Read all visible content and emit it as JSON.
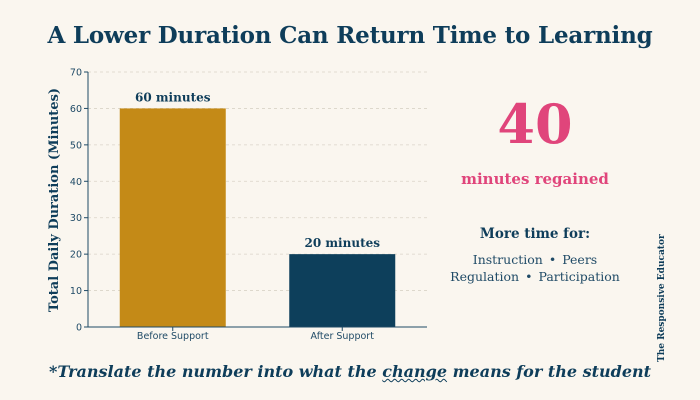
{
  "title": "A Lower Duration Can Return Time to Learning",
  "chart_data": {
    "type": "bar",
    "categories": [
      "Before Support",
      "After Support"
    ],
    "values": [
      60,
      20
    ],
    "data_labels": [
      "60 minutes",
      "20 minutes"
    ],
    "ylabel": "Total Daily Duration (Minutes)",
    "xlabel": "",
    "ylim": [
      0,
      70
    ],
    "yticks": [
      0,
      10,
      20,
      30,
      40,
      50,
      60,
      70
    ],
    "grid": true,
    "colors": [
      "#c48a17",
      "#0d3f5b"
    ]
  },
  "callout": {
    "number": "40",
    "label": "minutes regained",
    "heading": "More time for:",
    "line1": [
      "Instruction",
      "Peers"
    ],
    "line2": [
      "Regulation",
      "Participation"
    ],
    "bullet": "•",
    "accent_color": "#e0457b"
  },
  "side_credit": "The Responsive Educator",
  "footnote": {
    "prefix": "*Translate the number into what the ",
    "underlined": "change",
    "suffix": " means for the student"
  }
}
